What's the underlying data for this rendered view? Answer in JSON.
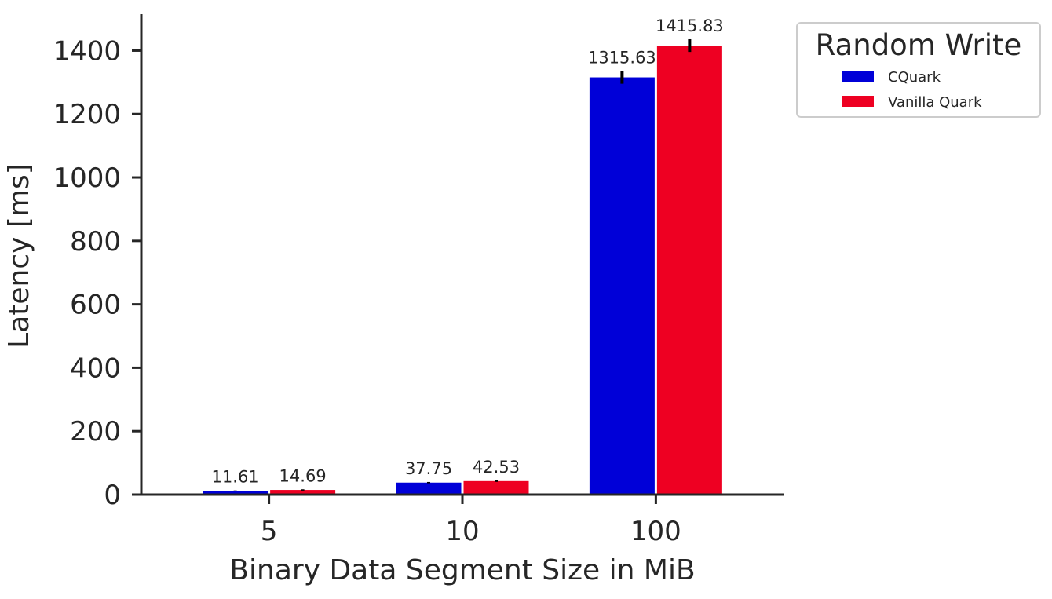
{
  "chart_data": {
    "type": "bar",
    "categories": [
      "5",
      "10",
      "100"
    ],
    "series": [
      {
        "name": "CQuark",
        "values": [
          11.61,
          37.75,
          1315.63
        ],
        "errors": [
          1.5,
          2.0,
          20.0
        ],
        "color": "#0000d8"
      },
      {
        "name": "Vanilla Quark",
        "values": [
          14.69,
          42.53,
          1415.83
        ],
        "errors": [
          2.0,
          2.5,
          20.0
        ],
        "color": "#ee0022"
      }
    ],
    "data_labels": [
      [
        "11.61",
        "37.75",
        "1315.63"
      ],
      [
        "14.69",
        "42.53",
        "1415.83"
      ]
    ],
    "xlabel": "Binary Data Segment Size in MiB",
    "ylabel": "Latency [ms]",
    "yticks": [
      0,
      200,
      400,
      600,
      800,
      1000,
      1200,
      1400
    ],
    "ylim": [
      0,
      1515
    ],
    "legend": {
      "title": "Random Write",
      "placement": "outside-top-right"
    },
    "grid": false
  }
}
